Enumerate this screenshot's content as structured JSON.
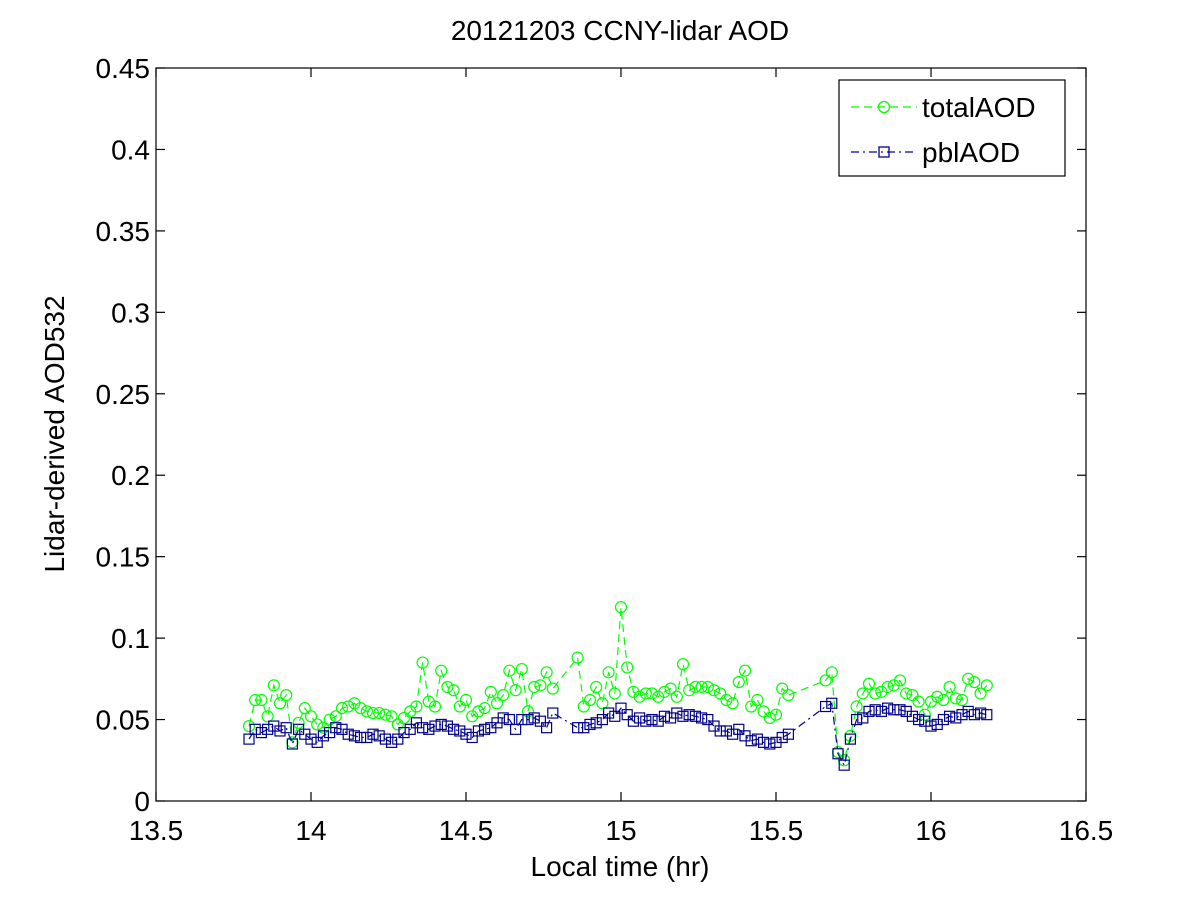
{
  "chart_data": {
    "type": "line",
    "title": "20121203 CCNY-lidar AOD",
    "xlabel": "Local time (hr)",
    "ylabel": "Lidar-derived AOD532",
    "xlim": [
      13.5,
      16.5
    ],
    "ylim": [
      0,
      0.45
    ],
    "xticks": [
      13.5,
      14,
      14.5,
      15,
      15.5,
      16,
      16.5
    ],
    "xtick_labels": [
      "13.5",
      "14",
      "14.5",
      "15",
      "15.5",
      "16",
      "16.5"
    ],
    "yticks": [
      0,
      0.05,
      0.1,
      0.15,
      0.2,
      0.25,
      0.3,
      0.35,
      0.4,
      0.45
    ],
    "ytick_labels": [
      "0",
      "0.05",
      "0.1",
      "0.15",
      "0.2",
      "0.25",
      "0.3",
      "0.35",
      "0.4",
      "0.45"
    ],
    "grid": false,
    "legend_position": "top-right",
    "x": [
      13.8,
      13.82,
      13.84,
      13.86,
      13.88,
      13.9,
      13.92,
      13.94,
      13.96,
      13.98,
      14.0,
      14.02,
      14.04,
      14.06,
      14.08,
      14.1,
      14.12,
      14.14,
      14.16,
      14.18,
      14.2,
      14.22,
      14.24,
      14.26,
      14.28,
      14.3,
      14.32,
      14.34,
      14.36,
      14.38,
      14.4,
      14.42,
      14.44,
      14.46,
      14.48,
      14.5,
      14.52,
      14.54,
      14.56,
      14.58,
      14.6,
      14.62,
      14.64,
      14.66,
      14.68,
      14.7,
      14.72,
      14.74,
      14.76,
      14.78,
      14.86,
      14.88,
      14.9,
      14.92,
      14.94,
      14.96,
      14.98,
      15.0,
      15.02,
      15.04,
      15.06,
      15.08,
      15.1,
      15.12,
      15.14,
      15.16,
      15.18,
      15.2,
      15.22,
      15.24,
      15.26,
      15.28,
      15.3,
      15.32,
      15.34,
      15.36,
      15.38,
      15.4,
      15.42,
      15.44,
      15.46,
      15.48,
      15.5,
      15.52,
      15.54,
      15.66,
      15.68,
      15.7,
      15.72,
      15.74,
      15.76,
      15.78,
      15.8,
      15.82,
      15.84,
      15.86,
      15.88,
      15.9,
      15.92,
      15.94,
      15.96,
      15.98,
      16.0,
      16.02,
      16.04,
      16.06,
      16.08,
      16.1,
      16.12,
      16.14,
      16.16,
      16.18
    ],
    "series": [
      {
        "name": "totalAOD",
        "color": "#00ff00",
        "marker": "circle",
        "line_style": "dashed",
        "values": [
          0.046,
          0.062,
          0.062,
          0.052,
          0.071,
          0.06,
          0.065,
          0.036,
          0.048,
          0.057,
          0.052,
          0.047,
          0.045,
          0.05,
          0.052,
          0.057,
          0.058,
          0.06,
          0.057,
          0.055,
          0.054,
          0.054,
          0.053,
          0.052,
          0.047,
          0.051,
          0.055,
          0.058,
          0.085,
          0.061,
          0.058,
          0.08,
          0.07,
          0.068,
          0.058,
          0.062,
          0.052,
          0.055,
          0.057,
          0.067,
          0.06,
          0.065,
          0.08,
          0.068,
          0.081,
          0.055,
          0.07,
          0.071,
          0.079,
          0.069,
          0.088,
          0.058,
          0.062,
          0.07,
          0.06,
          0.079,
          0.066,
          0.119,
          0.082,
          0.067,
          0.064,
          0.066,
          0.066,
          0.064,
          0.067,
          0.069,
          0.064,
          0.084,
          0.068,
          0.07,
          0.07,
          0.07,
          0.068,
          0.066,
          0.062,
          0.06,
          0.073,
          0.08,
          0.058,
          0.062,
          0.055,
          0.051,
          0.053,
          0.069,
          0.065,
          0.074,
          0.079,
          0.03,
          0.025,
          0.04,
          0.058,
          0.066,
          0.072,
          0.066,
          0.067,
          0.07,
          0.071,
          0.074,
          0.066,
          0.065,
          0.061,
          0.053,
          0.061,
          0.064,
          0.062,
          0.07,
          0.063,
          0.062,
          0.075,
          0.073,
          0.066,
          0.071
        ]
      },
      {
        "name": "pblAOD",
        "color": "#00008b",
        "marker": "square",
        "line_style": "dashdot",
        "values": [
          0.038,
          0.044,
          0.042,
          0.044,
          0.046,
          0.043,
          0.045,
          0.035,
          0.044,
          0.041,
          0.038,
          0.036,
          0.04,
          0.042,
          0.045,
          0.044,
          0.041,
          0.04,
          0.039,
          0.039,
          0.041,
          0.04,
          0.038,
          0.036,
          0.038,
          0.042,
          0.044,
          0.048,
          0.045,
          0.044,
          0.046,
          0.047,
          0.046,
          0.044,
          0.043,
          0.041,
          0.039,
          0.043,
          0.044,
          0.045,
          0.048,
          0.051,
          0.05,
          0.044,
          0.05,
          0.05,
          0.051,
          0.049,
          0.045,
          0.054,
          0.045,
          0.045,
          0.047,
          0.048,
          0.05,
          0.054,
          0.052,
          0.057,
          0.053,
          0.049,
          0.051,
          0.049,
          0.05,
          0.049,
          0.052,
          0.051,
          0.054,
          0.052,
          0.053,
          0.052,
          0.051,
          0.05,
          0.046,
          0.043,
          0.043,
          0.041,
          0.044,
          0.04,
          0.037,
          0.038,
          0.036,
          0.035,
          0.036,
          0.039,
          0.041,
          0.058,
          0.06,
          0.029,
          0.022,
          0.038,
          0.05,
          0.051,
          0.055,
          0.056,
          0.055,
          0.057,
          0.056,
          0.056,
          0.055,
          0.052,
          0.05,
          0.049,
          0.046,
          0.047,
          0.05,
          0.052,
          0.051,
          0.053,
          0.055,
          0.053,
          0.054,
          0.053
        ]
      }
    ]
  }
}
